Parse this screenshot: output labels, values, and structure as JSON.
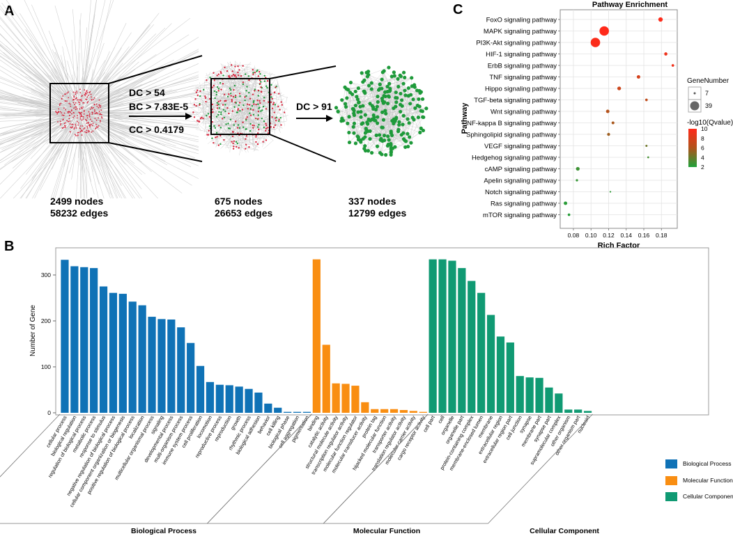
{
  "panel_labels": {
    "a": "A",
    "b": "B",
    "c": "C"
  },
  "colors": {
    "bp": "#0f72b6",
    "mf": "#f98e12",
    "cc": "#109a73",
    "edge": "#c8c8c8",
    "node_red": "#d7263d",
    "node_green": "#1e9a3a",
    "grad_high": "#ff2a1a",
    "grad_mid": "#b0541b",
    "grad_low": "#1fa23a"
  },
  "network": {
    "networks": [
      {
        "nodes_label": "2499 nodes",
        "edges_label": "58232 edges"
      },
      {
        "nodes_label": "675 nodes",
        "edges_label": "26653 edges"
      },
      {
        "nodes_label": "337 nodes",
        "edges_label": "12799 edges"
      }
    ],
    "filter1": [
      "DC > 54",
      "BC > 7.83E-5",
      "CC > 0.4179"
    ],
    "filter2": "DC > 91"
  },
  "chart_data": [
    {
      "id": "pathway_enrichment",
      "type": "scatter",
      "title": "Pathway Enrichment",
      "xlabel": "Rich Factor",
      "ylabel": "Pathway",
      "xlim": [
        0.065,
        0.198
      ],
      "xticks": [
        0.08,
        0.1,
        0.12,
        0.14,
        0.16,
        0.18
      ],
      "xtick_labels": [
        "0.08",
        "0.10",
        "0.12",
        "0.14",
        "0.16",
        "0.18"
      ],
      "size_legend": {
        "title": "GeneNumber",
        "entries": [
          {
            "label": "7",
            "value": 7
          },
          {
            "label": "39",
            "value": 39
          }
        ]
      },
      "color_legend": {
        "title": "-log10(Qvalue)",
        "ticks": [
          10,
          8,
          6,
          4,
          2
        ],
        "tick_labels": [
          "10",
          "8",
          "6",
          "4",
          "2"
        ],
        "range": [
          2,
          10
        ]
      },
      "points": [
        {
          "pathway": "FoxO signaling pathway",
          "rich_factor": 0.179,
          "gene_number": 17,
          "qvalue_log": 9.9
        },
        {
          "pathway": "MAPK signaling pathway",
          "rich_factor": 0.115,
          "gene_number": 39,
          "qvalue_log": 10.0
        },
        {
          "pathway": "PI3K-Akt signaling pathway",
          "rich_factor": 0.105,
          "gene_number": 39,
          "qvalue_log": 9.8
        },
        {
          "pathway": "HIF-1 signaling pathway",
          "rich_factor": 0.185,
          "gene_number": 12,
          "qvalue_log": 9.2
        },
        {
          "pathway": "ErbB signaling pathway",
          "rich_factor": 0.193,
          "gene_number": 9,
          "qvalue_log": 9.3
        },
        {
          "pathway": "TNF signaling pathway",
          "rich_factor": 0.154,
          "gene_number": 13,
          "qvalue_log": 7.8
        },
        {
          "pathway": "Hippo signaling pathway",
          "rich_factor": 0.132,
          "gene_number": 14,
          "qvalue_log": 7.4
        },
        {
          "pathway": "TGF-beta signaling pathway",
          "rich_factor": 0.163,
          "gene_number": 9,
          "qvalue_log": 6.8
        },
        {
          "pathway": "Wnt signaling pathway",
          "rich_factor": 0.119,
          "gene_number": 13,
          "qvalue_log": 6.2
        },
        {
          "pathway": "NF-kappa B signaling pathway",
          "rich_factor": 0.125,
          "gene_number": 10,
          "qvalue_log": 5.8
        },
        {
          "pathway": "Sphingolipid signaling pathway",
          "rich_factor": 0.12,
          "gene_number": 11,
          "qvalue_log": 5.5
        },
        {
          "pathway": "VEGF signaling pathway",
          "rich_factor": 0.163,
          "gene_number": 7,
          "qvalue_log": 4.2
        },
        {
          "pathway": "Hedgehog signaling pathway",
          "rich_factor": 0.165,
          "gene_number": 6,
          "qvalue_log": 3.0
        },
        {
          "pathway": "cAMP signaling pathway",
          "rich_factor": 0.085,
          "gene_number": 14,
          "qvalue_log": 2.8
        },
        {
          "pathway": "Apelin signaling pathway",
          "rich_factor": 0.084,
          "gene_number": 8,
          "qvalue_log": 2.6
        },
        {
          "pathway": "Notch signaling pathway",
          "rich_factor": 0.122,
          "gene_number": 5,
          "qvalue_log": 2.4
        },
        {
          "pathway": "Ras signaling pathway",
          "rich_factor": 0.071,
          "gene_number": 13,
          "qvalue_log": 2.3
        },
        {
          "pathway": "mTOR signaling pathway",
          "rich_factor": 0.075,
          "gene_number": 9,
          "qvalue_log": 2.2
        }
      ]
    },
    {
      "id": "go_annotation",
      "type": "bar",
      "ylabel": "Number of Gene",
      "ylim": [
        0,
        350
      ],
      "yticks": [
        0,
        100,
        200,
        300
      ],
      "ytick_labels": [
        "0",
        "100",
        "200",
        "300"
      ],
      "series": [
        {
          "name": "Biological Process",
          "categories": [
            "cellular process",
            "biological regulation",
            "regulation of biological process",
            "metabolic process",
            "response to stimulus",
            "negative regulation of biological process",
            "cellular component organization or biogenesis",
            "positive regulation of biological process",
            "localization",
            "multicellular organismal process",
            "signaling",
            "developmental process",
            "multi-organism process",
            "immune system process",
            "cell proliferation",
            "locomotion",
            "reproductive process",
            "reproduction",
            "growth",
            "rhythmic process",
            "biological adhesion",
            "behavior",
            "cell killing",
            "biological phase",
            "cell aggregation",
            "pigmentation"
          ],
          "values": [
            333,
            319,
            317,
            315,
            275,
            261,
            259,
            242,
            234,
            209,
            204,
            203,
            186,
            152,
            102,
            67,
            61,
            60,
            57,
            52,
            44,
            20,
            11,
            2,
            2,
            2
          ]
        },
        {
          "name": "Molecular Function",
          "categories": [
            "binding",
            "catalytic activity",
            "structural molecule activity",
            "transcription regulator activity",
            "molecular function regulator",
            "molecular transducer activity",
            "protein tag",
            "hijacked molecular function",
            "transporter activity",
            "translation regulator activity",
            "molecular carrier activity",
            "cargo receptor activity"
          ],
          "values": [
            334,
            148,
            64,
            63,
            59,
            23,
            8,
            8,
            8,
            6,
            4,
            2
          ]
        },
        {
          "name": "Cellular Component",
          "categories": [
            "cell part",
            "cell",
            "organelle",
            "organelle part",
            "protein-containing complex",
            "membrane-enclosed lumen",
            "membrane",
            "extracellular region",
            "extracellular region part",
            "cell junction",
            "synapse",
            "membrane part",
            "synapse part",
            "supramolecular complex",
            "other organism",
            "other organism part",
            "nucleoid"
          ],
          "values": [
            334,
            334,
            331,
            315,
            287,
            261,
            213,
            166,
            153,
            80,
            77,
            76,
            55,
            42,
            7,
            7,
            4
          ]
        }
      ],
      "group_labels": [
        "Biological Process",
        "Molecular Function",
        "Cellular Component"
      ],
      "legend": [
        "Biological Process",
        "Molecular Function",
        "Cellular Component"
      ]
    }
  ]
}
